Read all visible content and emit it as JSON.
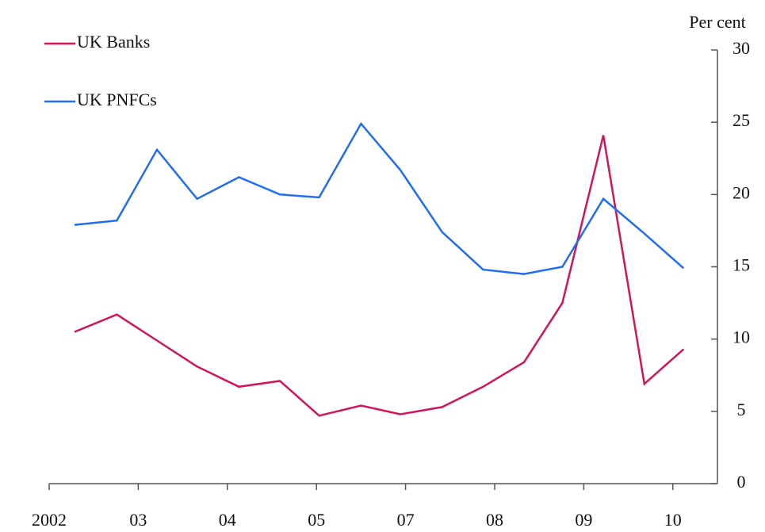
{
  "chart_data": {
    "type": "line",
    "y_label": "Per cent",
    "x": [
      0.285,
      0.76,
      1.21,
      1.66,
      2.13,
      2.59,
      3.03,
      3.5,
      3.94,
      4.41,
      4.87,
      5.33,
      5.76,
      6.22,
      6.68,
      7.12
    ],
    "xlim": [
      0,
      7.5
    ],
    "xticks": [
      {
        "value": 0,
        "label": "2002"
      },
      {
        "value": 1,
        "label": "03"
      },
      {
        "value": 2,
        "label": "04"
      },
      {
        "value": 3,
        "label": "05"
      },
      {
        "value": 4,
        "label": "07"
      },
      {
        "value": 5,
        "label": "08"
      },
      {
        "value": 6,
        "label": "09"
      },
      {
        "value": 7,
        "label": "10"
      }
    ],
    "ylim": [
      0,
      30
    ],
    "yticks": [
      0,
      5,
      10,
      15,
      20,
      25,
      30
    ],
    "y_axis_side": "right",
    "series": [
      {
        "name": "UK Banks",
        "color": "#d3145a",
        "values": [
          10.5,
          11.7,
          9.9,
          8.1,
          6.7,
          7.1,
          4.7,
          5.4,
          4.8,
          5.3,
          6.7,
          8.4,
          12.5,
          24.1,
          6.9,
          9.3
        ]
      },
      {
        "name": "UK PNFCs",
        "color": "#1f6cf5",
        "values": [
          17.9,
          18.2,
          23.1,
          19.7,
          21.2,
          20.0,
          19.8,
          24.9,
          21.7,
          17.4,
          14.8,
          14.5,
          15.0,
          19.7,
          17.3,
          14.9
        ]
      }
    ]
  }
}
